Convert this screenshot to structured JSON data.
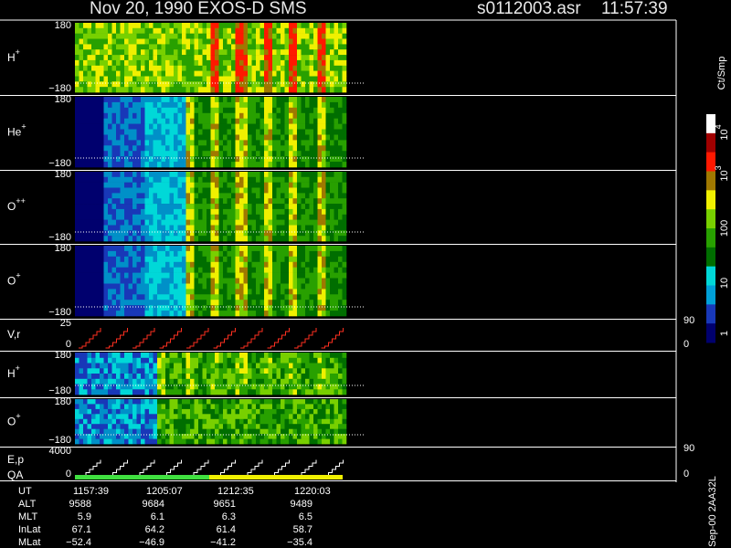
{
  "header": {
    "title": "Nov 20, 1990   EXOS-D SMS",
    "file": "s0112003.asr",
    "time": "11:57:39"
  },
  "panels": [
    {
      "label": "H",
      "sup": "+",
      "top": "180",
      "bottom": "−180"
    },
    {
      "label": "He",
      "sup": "+",
      "top": "180",
      "bottom": "−180"
    },
    {
      "label": "O",
      "sup": "++",
      "top": "180",
      "bottom": "−180"
    },
    {
      "label": "O",
      "sup": "+",
      "top": "180",
      "bottom": "−180"
    },
    {
      "label": "V,r",
      "sup": "",
      "top": "25",
      "bottom": "0",
      "right_top": "90",
      "right_bottom": "0"
    },
    {
      "label": "H",
      "sup": "+",
      "top": "180",
      "bottom": "−180"
    },
    {
      "label": "O",
      "sup": "+",
      "top": "180",
      "bottom": "−180"
    },
    {
      "label": "E,p",
      "sup": "",
      "label2": "QA",
      "top": "4000",
      "bottom": "0",
      "right_top": "90",
      "right_bottom": "0"
    }
  ],
  "colorbar": {
    "unit": "Ct/Smp",
    "labels": [
      {
        "base": "10",
        "sup": "4"
      },
      {
        "base": "10",
        "sup": "3"
      },
      {
        "base": "100",
        "sup": ""
      },
      {
        "base": "10",
        "sup": ""
      },
      {
        "base": "1",
        "sup": ""
      }
    ]
  },
  "table": {
    "rows": [
      {
        "name": "UT",
        "values": [
          "1157:39",
          "1205:07",
          "1212:35",
          "1220:03"
        ]
      },
      {
        "name": "ALT",
        "values": [
          "9588",
          "9684",
          "9651",
          "9489"
        ]
      },
      {
        "name": "MLT",
        "values": [
          "5.9",
          "6.1",
          "6.3",
          "6.5"
        ]
      },
      {
        "name": "InLat",
        "values": [
          "67.1",
          "64.2",
          "61.4",
          "58.7"
        ]
      },
      {
        "name": "MLat",
        "values": [
          "−52.4",
          "−46.9",
          "−41.2",
          "−35.4"
        ]
      }
    ]
  },
  "footer": "Sep-00  2AA32L"
}
